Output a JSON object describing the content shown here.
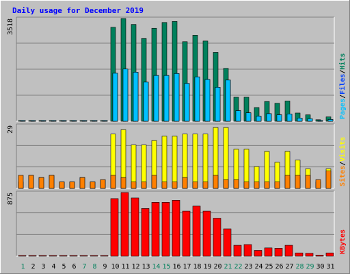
{
  "colors": {
    "background": "#C0C0C0",
    "plot_background": "#C0C0C0",
    "title": "#0000FF",
    "hits": "#00805C",
    "files": "#0040FF",
    "pages": "#00C0FF",
    "visits": "#FFFF00",
    "sites": "#FF8000",
    "kbytes": "#FF0000",
    "weekday_label": "#000000",
    "weekend_label": "#00805C"
  },
  "chart_data": [
    {
      "panel": "top",
      "type": "bar",
      "title": "Daily usage for December 2019",
      "categories": [
        "1",
        "2",
        "3",
        "4",
        "5",
        "6",
        "7",
        "8",
        "9",
        "10",
        "11",
        "12",
        "13",
        "14",
        "15",
        "16",
        "17",
        "18",
        "19",
        "20",
        "21",
        "22",
        "23",
        "24",
        "25",
        "26",
        "27",
        "28",
        "29",
        "30",
        "31"
      ],
      "weekend_days": [
        "1",
        "7",
        "8",
        "14",
        "15",
        "21",
        "22",
        "28",
        "29"
      ],
      "ymax_label": "3518",
      "ylim": [
        0,
        3518
      ],
      "grid": true,
      "legend": [
        "Pages",
        "/",
        "Files",
        "/",
        "Hits"
      ],
      "series": [
        {
          "name": "Hits",
          "values": [
            20,
            20,
            20,
            20,
            20,
            20,
            20,
            20,
            20,
            3218,
            3518,
            3315,
            2832,
            3184,
            3382,
            3416,
            2725,
            2948,
            2747,
            2358,
            1811,
            822,
            822,
            470,
            677,
            616,
            694,
            282,
            220,
            52,
            150
          ]
        },
        {
          "name": "Files",
          "values": [
            20,
            20,
            20,
            20,
            20,
            20,
            20,
            20,
            20,
            1644,
            1788,
            1680,
            1340,
            1567,
            1567,
            1634,
            1296,
            1519,
            1430,
            1164,
            1411,
            363,
            290,
            174,
            260,
            221,
            250,
            110,
            85,
            25,
            60
          ]
        },
        {
          "name": "Pages",
          "values": [
            5,
            5,
            5,
            5,
            5,
            5,
            5,
            5,
            5,
            1644,
            1788,
            1680,
            1340,
            1567,
            1567,
            1634,
            1296,
            1519,
            1430,
            1164,
            1411,
            363,
            290,
            174,
            260,
            221,
            250,
            110,
            85,
            25,
            60
          ]
        }
      ]
    },
    {
      "panel": "middle",
      "type": "bar",
      "categories": [
        "1",
        "2",
        "3",
        "4",
        "5",
        "6",
        "7",
        "8",
        "9",
        "10",
        "11",
        "12",
        "13",
        "14",
        "15",
        "16",
        "17",
        "18",
        "19",
        "20",
        "21",
        "22",
        "23",
        "24",
        "25",
        "26",
        "27",
        "28",
        "29",
        "30",
        "31"
      ],
      "ymax_label": "29",
      "ylim": [
        0,
        29
      ],
      "grid": true,
      "legend": [
        "Sites",
        "/",
        "Visits"
      ],
      "series": [
        {
          "name": "Visits",
          "values": [
            3,
            6,
            5,
            6,
            3,
            3,
            5,
            3,
            4,
            25,
            27,
            20,
            20,
            22,
            24,
            24,
            25,
            25,
            25,
            28,
            28,
            18,
            18,
            10,
            17,
            12,
            17,
            13,
            9,
            3,
            9
          ]
        },
        {
          "name": "Sites",
          "values": [
            6,
            6,
            5,
            6,
            3,
            3,
            5,
            3,
            4,
            6,
            5,
            3,
            3,
            6,
            3,
            3,
            5,
            3,
            3,
            6,
            4,
            4,
            3,
            3,
            3,
            3,
            6,
            6,
            6,
            4,
            8
          ]
        }
      ]
    },
    {
      "panel": "bottom",
      "type": "bar",
      "categories": [
        "1",
        "2",
        "3",
        "4",
        "5",
        "6",
        "7",
        "8",
        "9",
        "10",
        "11",
        "12",
        "13",
        "14",
        "15",
        "16",
        "17",
        "18",
        "19",
        "20",
        "21",
        "22",
        "23",
        "24",
        "25",
        "26",
        "27",
        "28",
        "29",
        "30",
        "31"
      ],
      "ymax_label": "875",
      "ylim": [
        0,
        875
      ],
      "grid": true,
      "legend": [
        "KBytes"
      ],
      "series": [
        {
          "name": "KBytes",
          "values": [
            5,
            5,
            5,
            5,
            5,
            5,
            5,
            5,
            5,
            791,
            875,
            800,
            655,
            740,
            740,
            768,
            620,
            688,
            620,
            522,
            376,
            150,
            160,
            80,
            114,
            110,
            150,
            45,
            40,
            15,
            45
          ]
        }
      ]
    }
  ]
}
